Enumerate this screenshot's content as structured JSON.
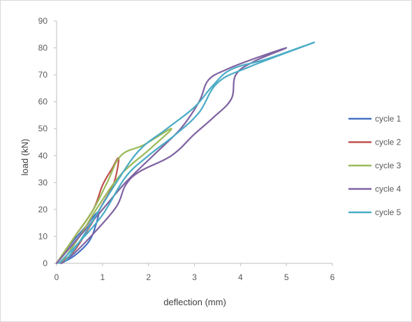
{
  "chart_data": {
    "type": "line",
    "title": "",
    "xlabel": "deflection (mm)",
    "ylabel": "load (kN)",
    "xlim": [
      0,
      6
    ],
    "ylim": [
      0,
      90
    ],
    "xticks": [
      "0",
      "1",
      "2",
      "3",
      "4",
      "5",
      "6"
    ],
    "yticks": [
      "0",
      "10",
      "20",
      "30",
      "40",
      "50",
      "60",
      "70",
      "80",
      "90"
    ],
    "grid": false,
    "legend_position": "right",
    "series": [
      {
        "name": "cycle 1",
        "color": "#4472c4",
        "points": [
          [
            0,
            0
          ],
          [
            0.3,
            7
          ],
          [
            0.6,
            13
          ],
          [
            0.9,
            19
          ],
          [
            0.85,
            14
          ],
          [
            0.7,
            8
          ],
          [
            0.4,
            3
          ],
          [
            0.1,
            0
          ]
        ]
      },
      {
        "name": "cycle 2",
        "color": "#c0504d",
        "points": [
          [
            0,
            0
          ],
          [
            0.4,
            10
          ],
          [
            0.8,
            20
          ],
          [
            1.0,
            29
          ],
          [
            1.2,
            35
          ],
          [
            1.35,
            39
          ],
          [
            1.25,
            30
          ],
          [
            1.0,
            22
          ],
          [
            0.7,
            13
          ],
          [
            0.4,
            5
          ],
          [
            0.1,
            0
          ]
        ]
      },
      {
        "name": "cycle 3",
        "color": "#9bbb59",
        "points": [
          [
            0,
            0
          ],
          [
            0.4,
            10
          ],
          [
            0.8,
            20
          ],
          [
            1.1,
            30
          ],
          [
            1.4,
            40
          ],
          [
            1.9,
            44
          ],
          [
            2.5,
            50
          ],
          [
            2.0,
            42
          ],
          [
            1.4,
            33
          ],
          [
            0.9,
            21
          ],
          [
            0.5,
            10
          ],
          [
            0.1,
            0
          ]
        ]
      },
      {
        "name": "cycle 4",
        "color": "#8064a2",
        "points": [
          [
            0,
            0
          ],
          [
            0.5,
            10
          ],
          [
            1.0,
            20
          ],
          [
            1.5,
            30
          ],
          [
            2.1,
            40
          ],
          [
            2.7,
            50
          ],
          [
            3.1,
            60
          ],
          [
            3.3,
            68
          ],
          [
            3.7,
            72
          ],
          [
            4.3,
            76
          ],
          [
            5.0,
            80
          ],
          [
            4.3,
            75
          ],
          [
            3.9,
            70
          ],
          [
            3.8,
            61
          ],
          [
            3.4,
            54
          ],
          [
            3.0,
            48
          ],
          [
            2.5,
            40
          ],
          [
            1.8,
            34
          ],
          [
            1.5,
            29
          ],
          [
            1.3,
            21
          ],
          [
            0.8,
            11
          ],
          [
            0.4,
            4
          ],
          [
            0.1,
            0
          ]
        ]
      },
      {
        "name": "cycle 5",
        "color": "#4bacc6",
        "points": [
          [
            0.05,
            0
          ],
          [
            0.5,
            8
          ],
          [
            1.0,
            18
          ],
          [
            1.5,
            32
          ],
          [
            2.0,
            40
          ],
          [
            2.6,
            48
          ],
          [
            3.1,
            56
          ],
          [
            3.5,
            67
          ],
          [
            4.2,
            73
          ],
          [
            5.6,
            82
          ],
          [
            4.6,
            76
          ],
          [
            3.8,
            72
          ],
          [
            3.4,
            66
          ],
          [
            3.0,
            58
          ],
          [
            2.4,
            50
          ],
          [
            1.8,
            42
          ],
          [
            1.3,
            30
          ],
          [
            0.9,
            19
          ],
          [
            0.5,
            8
          ],
          [
            0.2,
            1
          ]
        ]
      }
    ]
  }
}
